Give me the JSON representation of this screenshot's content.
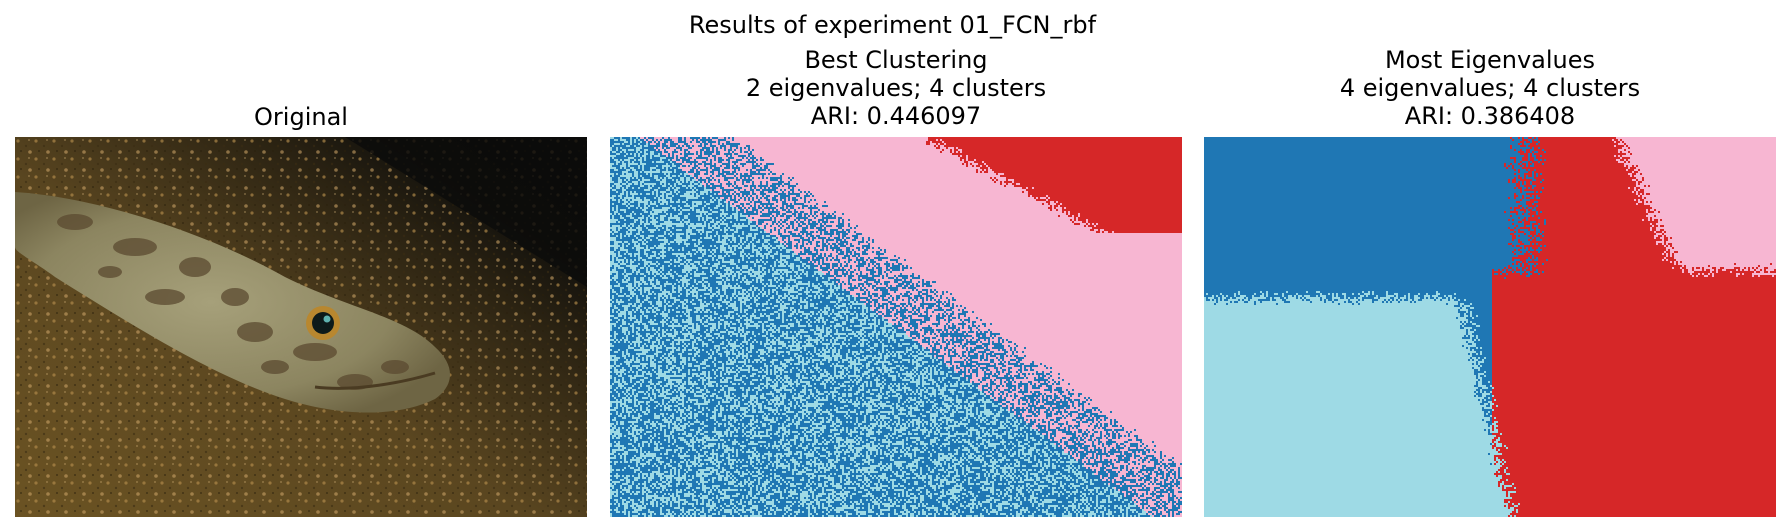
{
  "figure": {
    "suptitle": "Results of experiment 01_FCN_rbf"
  },
  "panels": [
    {
      "title_lines": [
        "Original"
      ],
      "image": "underwater photo of a camouflaged lizardfish resting on sandy gravel seabed"
    },
    {
      "title_lines": [
        "Best Clustering",
        "2 eigenvalues; 4 clusters",
        "ARI: 0.446097"
      ],
      "cluster_colors": [
        "#1f77b4",
        "#9edae5",
        "#f7b6d2",
        "#d62728"
      ]
    },
    {
      "title_lines": [
        "Most Eigenvalues",
        "4 eigenvalues; 4 clusters",
        "ARI: 0.386408"
      ],
      "cluster_colors": [
        "#1f77b4",
        "#9edae5",
        "#f7b6d2",
        "#d62728"
      ]
    }
  ]
}
